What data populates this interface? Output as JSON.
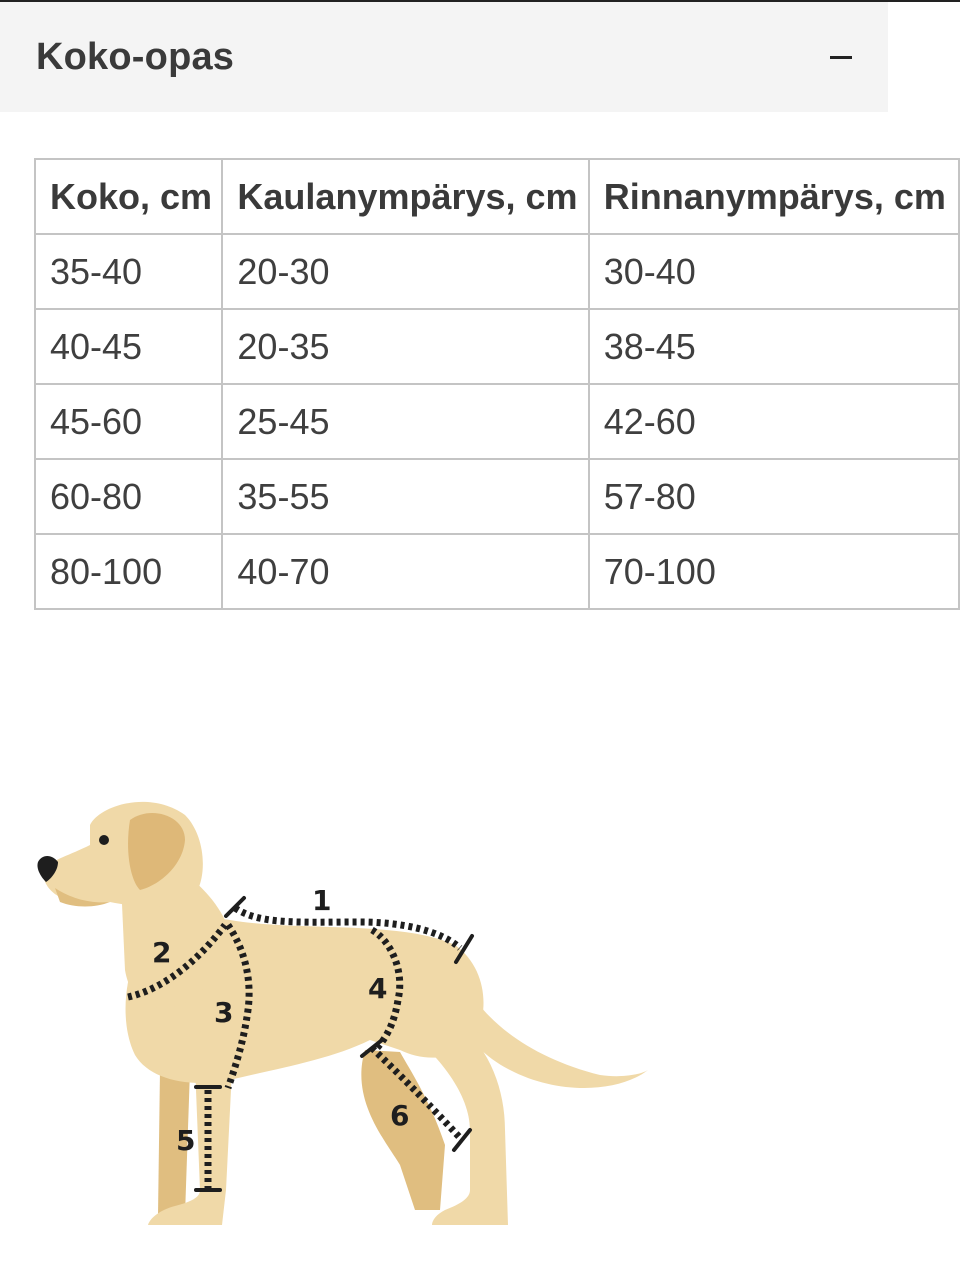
{
  "accordion": {
    "title": "Koko-opas",
    "toggle_icon": "minus-icon"
  },
  "size_table": {
    "headers": [
      "Koko, cm",
      "Kaulanympärys, cm",
      "Rinnanympärys, cm"
    ],
    "rows": [
      [
        "35-40",
        "20-30",
        "30-40"
      ],
      [
        "40-45",
        "20-35",
        "38-45"
      ],
      [
        "45-60",
        "25-45",
        "42-60"
      ],
      [
        "60-80",
        "35-55",
        "57-80"
      ],
      [
        "80-100",
        "40-70",
        "70-100"
      ]
    ]
  },
  "illustration": {
    "icon": "dog-measurement-icon",
    "labels": [
      "1",
      "2",
      "3",
      "4",
      "5",
      "6"
    ],
    "colors": {
      "body": "#f0d9a8",
      "shadow": "#e0be80",
      "ear": "#deb878",
      "dots": "#1e1e1e"
    }
  }
}
